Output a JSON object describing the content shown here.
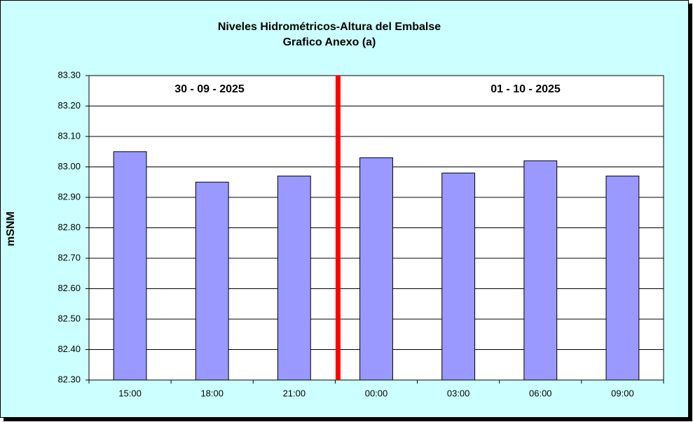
{
  "chart_data": {
    "type": "bar",
    "title": "Niveles Hidrométricos-Altura del Embalse",
    "subtitle": "Grafico Anexo (a)",
    "y_label": "mSNM",
    "annotations": [
      "30 - 09 - 2025",
      "01 - 10 - 2025"
    ],
    "categories": [
      "15:00",
      "18:00",
      "21:00",
      "00:00",
      "03:00",
      "06:00",
      "09:00"
    ],
    "values": [
      83.05,
      82.95,
      82.97,
      83.03,
      82.98,
      83.02,
      82.97
    ],
    "color": "#9999ff",
    "ylim": [
      82.3,
      83.3
    ],
    "yticks": [
      {
        "value": 82.3,
        "label": "82.30"
      },
      {
        "value": 82.4,
        "label": "82.40"
      },
      {
        "value": 82.5,
        "label": "82.50"
      },
      {
        "value": 82.6,
        "label": "82.60"
      },
      {
        "value": 82.7,
        "label": "82.70"
      },
      {
        "value": 82.8,
        "label": "82.80"
      },
      {
        "value": 82.9,
        "label": "82.90"
      },
      {
        "value": 83.0,
        "label": "83.00"
      },
      {
        "value": 83.1,
        "label": "83.10"
      },
      {
        "value": 83.2,
        "label": "83.20"
      },
      {
        "value": 83.3,
        "label": "83.30"
      }
    ],
    "grid": true
  }
}
